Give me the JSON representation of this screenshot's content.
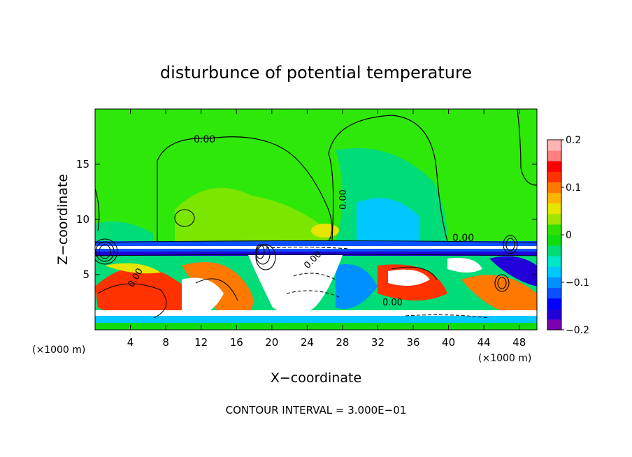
{
  "chart_data": {
    "type": "heatmap",
    "title": "disturbunce of potential temperature",
    "xlabel": "X−coordinate",
    "ylabel": "Z−coordinate",
    "x_unit_left": "(×1000 m)",
    "x_unit_right": "(×1000 m)",
    "xlim": [
      0,
      50
    ],
    "ylim": [
      0,
      20
    ],
    "x_ticks": [
      4,
      8,
      12,
      16,
      20,
      24,
      28,
      32,
      36,
      40,
      44,
      48
    ],
    "x_tick_labels": [
      "4",
      "8",
      "12",
      "16",
      "20",
      "24",
      "28",
      "32",
      "36",
      "40",
      "44",
      "48"
    ],
    "y_ticks": [
      5,
      10,
      15
    ],
    "y_tick_labels": [
      "5",
      "10",
      "15"
    ],
    "contour_labels": [
      "0.00",
      "0.00",
      "0.00",
      "0.00",
      "0.00",
      "0.00"
    ],
    "footer": "CONTOUR INTERVAL = 3.000E−01",
    "colorbar": {
      "range": [
        -0.2,
        0.2
      ],
      "tick_values": [
        0.2,
        0.1,
        0,
        -0.1,
        -0.2
      ],
      "tick_labels": [
        "0.2",
        "0.1",
        "0",
        "−0.1",
        "−0.2"
      ],
      "colors": [
        "#7b00b0",
        "#2200d8",
        "#0000ff",
        "#0a50ff",
        "#0090ff",
        "#00c8ff",
        "#00e6c8",
        "#00dc78",
        "#10dc10",
        "#30e000",
        "#a0e600",
        "#e6e600",
        "#ffb400",
        "#ff7800",
        "#ff3200",
        "#ff0000",
        "#ff8080",
        "#ffb4b4"
      ]
    }
  }
}
